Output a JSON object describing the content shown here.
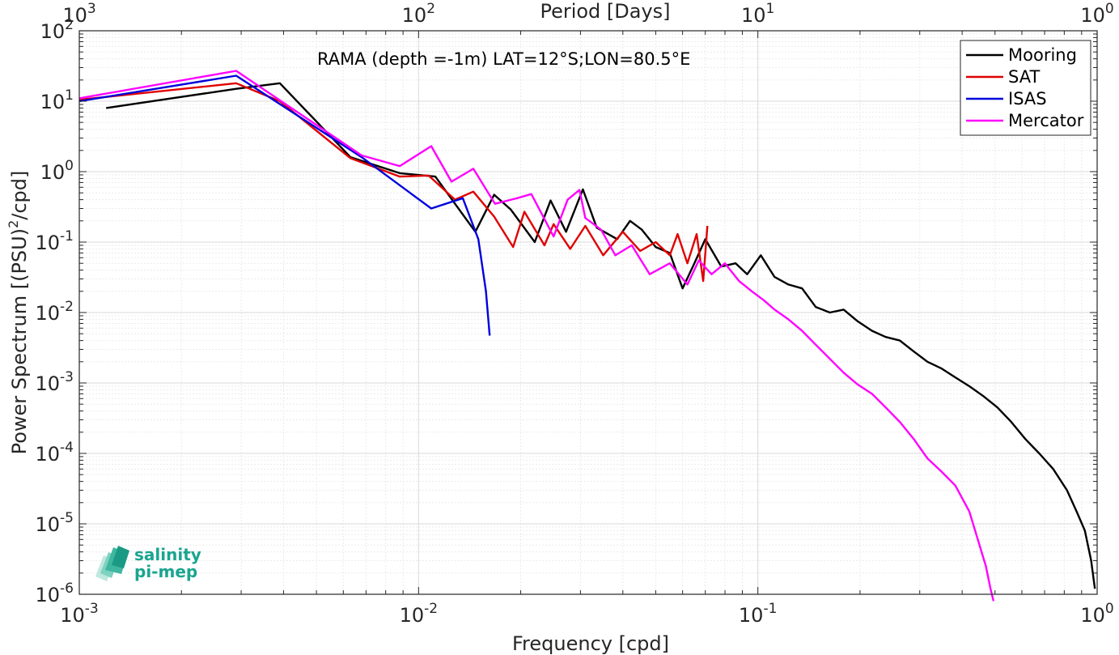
{
  "chart_data": {
    "type": "line",
    "annotation": "RAMA (depth =-1m) LAT=12°S;LON=80.5°E",
    "xlabel": "Frequency [cpd]",
    "ylabel_main": "Power Spectrum [(PSU)",
    "ylabel_sup": "2",
    "ylabel_tail": "/cpd]",
    "top_xlabel": "Period [Days]",
    "xscale": "log",
    "yscale": "log",
    "xlim": [
      0.001,
      1
    ],
    "ylim": [
      1e-06,
      100
    ],
    "grid": true,
    "legend_position": "top-right",
    "x_ticks": [
      {
        "value": 0.001,
        "base": "10",
        "exp": "-3"
      },
      {
        "value": 0.01,
        "base": "10",
        "exp": "-2"
      },
      {
        "value": 0.1,
        "base": "10",
        "exp": "-1"
      },
      {
        "value": 1,
        "base": "10",
        "exp": "0"
      }
    ],
    "top_ticks": [
      {
        "value": 0.001,
        "base": "10",
        "exp": "3"
      },
      {
        "value": 0.01,
        "base": "10",
        "exp": "2"
      },
      {
        "value": 0.1,
        "base": "10",
        "exp": "1"
      },
      {
        "value": 1,
        "base": "10",
        "exp": "0"
      }
    ],
    "y_ticks": [
      {
        "value": 100,
        "base": "10",
        "exp": "2"
      },
      {
        "value": 10,
        "base": "10",
        "exp": "1"
      },
      {
        "value": 1,
        "base": "10",
        "exp": "0"
      },
      {
        "value": 0.1,
        "base": "10",
        "exp": "-1"
      },
      {
        "value": 0.01,
        "base": "10",
        "exp": "-2"
      },
      {
        "value": 0.001,
        "base": "10",
        "exp": "-3"
      },
      {
        "value": 0.0001,
        "base": "10",
        "exp": "-4"
      },
      {
        "value": 1e-05,
        "base": "10",
        "exp": "-5"
      },
      {
        "value": 1e-06,
        "base": "10",
        "exp": "-6"
      }
    ],
    "series": [
      {
        "name": "Mooring",
        "color": "#000000",
        "x": [
          0.0012,
          0.0029,
          0.0039,
          0.0063,
          0.0088,
          0.0112,
          0.0147,
          0.0167,
          0.0187,
          0.022,
          0.0245,
          0.0272,
          0.0305,
          0.0335,
          0.0385,
          0.042,
          0.0455,
          0.05,
          0.055,
          0.06,
          0.065,
          0.07,
          0.078,
          0.086,
          0.093,
          0.102,
          0.112,
          0.123,
          0.135,
          0.148,
          0.163,
          0.179,
          0.197,
          0.217,
          0.238,
          0.262,
          0.288,
          0.316,
          0.348,
          0.382,
          0.42,
          0.462,
          0.508,
          0.558,
          0.614,
          0.675,
          0.742,
          0.815,
          0.87,
          0.92,
          0.96,
          0.985
        ],
        "y": [
          8,
          15,
          18,
          1.6,
          0.95,
          0.85,
          0.14,
          0.47,
          0.29,
          0.1,
          0.39,
          0.14,
          0.56,
          0.16,
          0.11,
          0.2,
          0.15,
          0.085,
          0.07,
          0.022,
          0.05,
          0.11,
          0.045,
          0.05,
          0.035,
          0.065,
          0.032,
          0.025,
          0.022,
          0.012,
          0.01,
          0.011,
          0.0075,
          0.0055,
          0.0045,
          0.004,
          0.0028,
          0.002,
          0.0016,
          0.0012,
          0.0009,
          0.00065,
          0.00045,
          0.00028,
          0.00016,
          0.0001,
          6e-05,
          3e-05,
          1.5e-05,
          8e-06,
          3e-06,
          1.2e-06
        ]
      },
      {
        "name": "SAT",
        "color": "#e00000",
        "x": [
          0.001,
          0.0029,
          0.0039,
          0.0063,
          0.0088,
          0.0107,
          0.0128,
          0.0145,
          0.0167,
          0.019,
          0.0205,
          0.0235,
          0.025,
          0.028,
          0.031,
          0.035,
          0.04,
          0.045,
          0.05,
          0.055,
          0.058,
          0.062,
          0.066,
          0.069,
          0.071
        ],
        "y": [
          10.5,
          18,
          10,
          1.55,
          0.85,
          0.88,
          0.4,
          0.52,
          0.23,
          0.085,
          0.27,
          0.09,
          0.18,
          0.08,
          0.17,
          0.065,
          0.14,
          0.075,
          0.1,
          0.065,
          0.13,
          0.05,
          0.13,
          0.028,
          0.17
        ]
      },
      {
        "name": "ISAS",
        "color": "#0000dd",
        "x": [
          0.001,
          0.0029,
          0.0068,
          0.0109,
          0.0135,
          0.015,
          0.0158,
          0.0162
        ],
        "y": [
          10,
          23,
          1.6,
          0.3,
          0.42,
          0.11,
          0.02,
          0.0047
        ]
      },
      {
        "name": "Mercator",
        "color": "#ff00ff",
        "x": [
          0.001,
          0.0029,
          0.0068,
          0.0088,
          0.0109,
          0.0125,
          0.0145,
          0.0168,
          0.0195,
          0.0215,
          0.025,
          0.0275,
          0.0298,
          0.031,
          0.0345,
          0.038,
          0.0425,
          0.048,
          0.055,
          0.062,
          0.067,
          0.073,
          0.08,
          0.088,
          0.096,
          0.104,
          0.112,
          0.123,
          0.135,
          0.148,
          0.163,
          0.179,
          0.197,
          0.217,
          0.238,
          0.262,
          0.288,
          0.316,
          0.348,
          0.382,
          0.42,
          0.445,
          0.47,
          0.485,
          0.495
        ],
        "y": [
          11,
          27,
          1.7,
          1.2,
          2.3,
          0.72,
          1.1,
          0.35,
          0.42,
          0.48,
          0.12,
          0.4,
          0.55,
          0.22,
          0.15,
          0.065,
          0.09,
          0.035,
          0.05,
          0.025,
          0.055,
          0.035,
          0.05,
          0.028,
          0.02,
          0.015,
          0.011,
          0.008,
          0.0055,
          0.0035,
          0.0022,
          0.0014,
          0.00095,
          0.0007,
          0.00045,
          0.00028,
          0.00016,
          8.5e-05,
          5.5e-05,
          3.5e-05,
          1.5e-05,
          6e-06,
          2.5e-06,
          1.2e-06,
          8e-07
        ]
      }
    ]
  },
  "logo": {
    "line1": "salinity",
    "line2": "pi-mep"
  }
}
